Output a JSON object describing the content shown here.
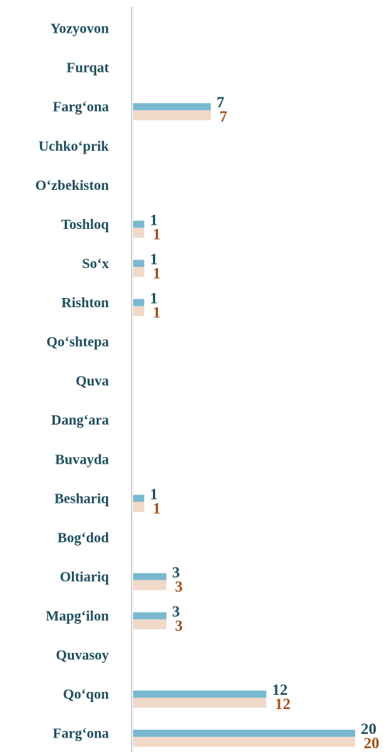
{
  "chart_data": {
    "type": "bar",
    "orientation": "horizontal",
    "categories": [
      "Yozyovon",
      "Furqat",
      "Farg‘ona",
      "Uchko‘prik",
      "O‘zbekiston",
      "Toshloq",
      "So‘x",
      "Rishton",
      "Qo‘shtepa",
      "Quva",
      "Dang‘ara",
      "Buvayda",
      "Beshariq",
      "Bog‘dod",
      "Oltiariq",
      "Mapg‘ilon",
      "Quvasoy",
      "Qo‘qon",
      "Farg‘ona"
    ],
    "series": [
      {
        "color": "#7ab8d0",
        "label_color": "#1f4f5f",
        "values": [
          null,
          null,
          7,
          null,
          null,
          1,
          1,
          1,
          null,
          null,
          null,
          null,
          1,
          null,
          3,
          3,
          null,
          12,
          20
        ]
      },
      {
        "color": "#f0d9c8",
        "label_color": "#a0521a",
        "values": [
          null,
          null,
          7,
          null,
          null,
          1,
          1,
          1,
          null,
          null,
          null,
          null,
          1,
          null,
          3,
          3,
          null,
          12,
          20
        ]
      }
    ],
    "xlim": [
      0,
      20
    ]
  }
}
